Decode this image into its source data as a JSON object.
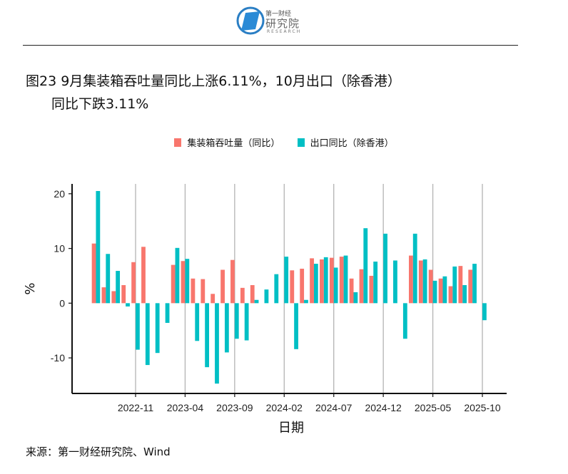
{
  "header": {
    "logo_text": "第一财经研究院 RESEARCH",
    "title_line1": "图23 9月集装箱吞吐量同比上涨6.11%，10月出口（除香港）",
    "title_line2": "同比下跌3.11%"
  },
  "source": "来源：第一财经研究院、Wind",
  "chart_data": {
    "type": "bar",
    "title": "",
    "xlabel": "日期",
    "ylabel": "%",
    "ylim": [
      -16.5,
      21.8
    ],
    "yticks": [
      -10,
      0,
      10,
      20
    ],
    "ytick_labels": [
      "-10",
      "0",
      "10",
      "20"
    ],
    "xtick_labels": [
      "2022-11",
      "2023-04",
      "2023-09",
      "2024-02",
      "2024-07",
      "2024-12",
      "2025-05",
      "2025-10"
    ],
    "grid": "vertical lines at x ticks",
    "legend_position": "top",
    "categories": [
      "2022-07",
      "2022-08",
      "2022-09",
      "2022-10",
      "2022-11",
      "2022-12",
      "2023-01",
      "2023-02",
      "2023-03",
      "2023-04",
      "2023-05",
      "2023-06",
      "2023-07",
      "2023-08",
      "2023-09",
      "2023-10",
      "2023-11",
      "2023-12",
      "2024-01",
      "2024-02",
      "2024-03",
      "2024-04",
      "2024-05",
      "2024-06",
      "2024-07",
      "2024-08",
      "2024-09",
      "2024-10",
      "2024-11",
      "2024-12",
      "2025-01",
      "2025-02",
      "2025-03",
      "2025-04",
      "2025-05",
      "2025-06",
      "2025-07",
      "2025-08",
      "2025-09",
      "2025-10"
    ],
    "series": [
      {
        "name": "集装箱吞吐量（同比）",
        "color": "#F8766D",
        "values": [
          10.9,
          2.9,
          2.2,
          3.3,
          7.5,
          10.3,
          null,
          null,
          7.0,
          7.7,
          4.5,
          4.4,
          1.7,
          6.1,
          7.9,
          2.8,
          3.3,
          null,
          null,
          null,
          6.0,
          6.3,
          8.2,
          8.0,
          8.3,
          8.5,
          4.5,
          6.2,
          5.0,
          null,
          null,
          null,
          8.7,
          7.8,
          6.1,
          4.5,
          3.1,
          6.8,
          6.11,
          null
        ]
      },
      {
        "name": "出口同比（除香港）",
        "color": "#00BFC4",
        "values": [
          20.5,
          9.0,
          5.9,
          -0.6,
          -8.5,
          -11.3,
          -9.1,
          -3.6,
          10.1,
          8.1,
          -6.9,
          -11.7,
          -14.7,
          -9.0,
          -6.5,
          -6.8,
          0.6,
          2.5,
          5.3,
          8.5,
          -8.4,
          0.6,
          7.2,
          8.4,
          6.5,
          8.7,
          2.0,
          13.7,
          7.6,
          12.7,
          7.8,
          -6.5,
          12.7,
          8.0,
          4.1,
          4.9,
          6.7,
          3.3,
          7.2,
          -3.11
        ]
      }
    ]
  }
}
